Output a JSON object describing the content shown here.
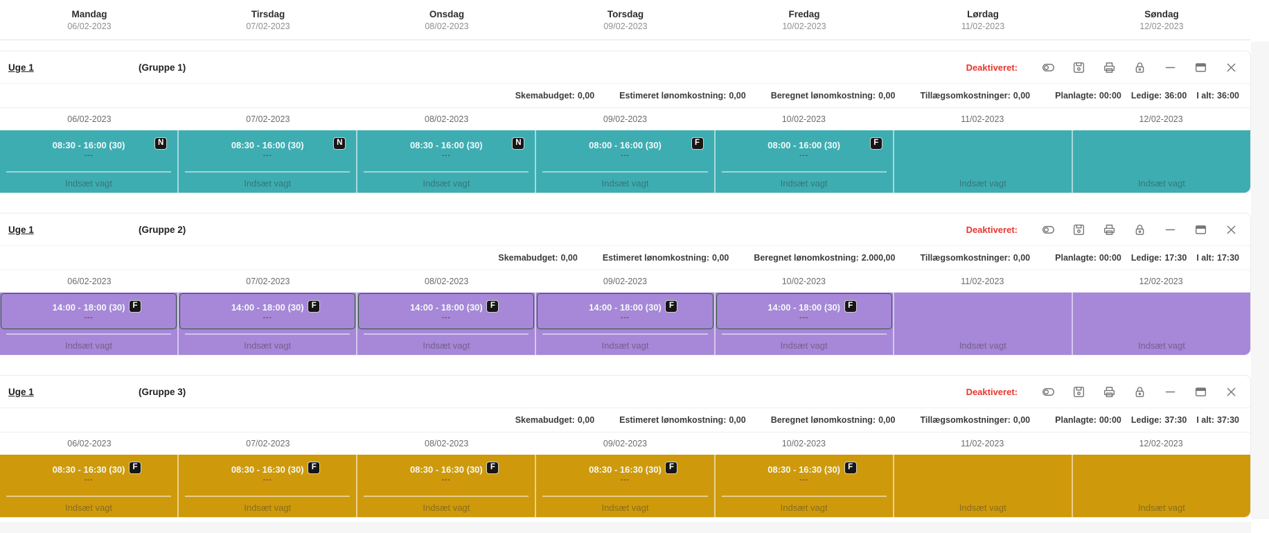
{
  "header": {
    "days": [
      {
        "name": "Mandag",
        "date": "06/02-2023"
      },
      {
        "name": "Tirsdag",
        "date": "07/02-2023"
      },
      {
        "name": "Onsdag",
        "date": "08/02-2023"
      },
      {
        "name": "Torsdag",
        "date": "09/02-2023"
      },
      {
        "name": "Fredag",
        "date": "10/02-2023"
      },
      {
        "name": "Lørdag",
        "date": "11/02-2023"
      },
      {
        "name": "Søndag",
        "date": "12/02-2023"
      }
    ]
  },
  "labels": {
    "deactivated": "Deaktiveret:",
    "insert_shift": "Indsæt vagt"
  },
  "icons": [
    "toggle-icon",
    "save-icon",
    "print-icon",
    "lock-icon",
    "minimize-icon",
    "window-icon",
    "close-icon"
  ],
  "colors": {
    "group1_row": "#3dadb2",
    "group2_row": "#a687d8",
    "group2_block_border": "#2e5c31",
    "group3_row": "#ce9a0b",
    "deactivated_text": "#e8352e",
    "dash_marks": "#9c372e",
    "badge_bg": "#161616"
  },
  "groups": [
    {
      "week_label": "Uge 1",
      "group_label": "(Gruppe 1)",
      "color": "#3dadb2",
      "block_border": null,
      "badge_align": "edge",
      "stats": [
        {
          "label": "Skemabudget:",
          "value": "0,00",
          "tight": false
        },
        {
          "label": "Estimeret lønomkostning:",
          "value": "0,00",
          "tight": false
        },
        {
          "label": "Beregnet lønomkostning:",
          "value": "0,00",
          "tight": false
        },
        {
          "label": "Tillægsomkostninger:",
          "value": "0,00",
          "tight": false
        },
        {
          "label": "Planlagte:",
          "value": "00:00",
          "tight": false
        },
        {
          "label": "Ledige:",
          "value": "36:00",
          "tight": true
        },
        {
          "label": "I alt:",
          "value": "36:00",
          "tight": true
        }
      ],
      "dates": [
        "06/02-2023",
        "07/02-2023",
        "08/02-2023",
        "09/02-2023",
        "10/02-2023",
        "11/02-2023",
        "12/02-2023"
      ],
      "shifts": [
        {
          "time": "08:30 - 16:00 (30)",
          "badge": "N",
          "dashes": "---"
        },
        {
          "time": "08:30 - 16:00 (30)",
          "badge": "N",
          "dashes": "---"
        },
        {
          "time": "08:30 - 16:00 (30)",
          "badge": "N",
          "dashes": "---"
        },
        {
          "time": "08:00 - 16:00 (30)",
          "badge": "F",
          "dashes": "---"
        },
        {
          "time": "08:00 - 16:00 (30)",
          "badge": "F",
          "dashes": "---"
        },
        null,
        null
      ]
    },
    {
      "week_label": "Uge 1",
      "group_label": "(Gruppe 2)",
      "color": "#a687d8",
      "block_border": "#2e5c31",
      "badge_align": "mid",
      "stats": [
        {
          "label": "Skemabudget:",
          "value": "0,00",
          "tight": false
        },
        {
          "label": "Estimeret lønomkostning:",
          "value": "0,00",
          "tight": false
        },
        {
          "label": "Beregnet lønomkostning:",
          "value": "2.000,00",
          "tight": false
        },
        {
          "label": "Tillægsomkostninger:",
          "value": "0,00",
          "tight": false
        },
        {
          "label": "Planlagte:",
          "value": "00:00",
          "tight": false
        },
        {
          "label": "Ledige:",
          "value": "17:30",
          "tight": true
        },
        {
          "label": "I alt:",
          "value": "17:30",
          "tight": true
        }
      ],
      "dates": [
        "06/02-2023",
        "07/02-2023",
        "08/02-2023",
        "09/02-2023",
        "10/02-2023",
        "11/02-2023",
        "12/02-2023"
      ],
      "shifts": [
        {
          "time": "14:00 - 18:00 (30)",
          "badge": "F",
          "dashes": "---"
        },
        {
          "time": "14:00 - 18:00 (30)",
          "badge": "F",
          "dashes": "---"
        },
        {
          "time": "14:00 - 18:00 (30)",
          "badge": "F",
          "dashes": "---"
        },
        {
          "time": "14:00 - 18:00 (30)",
          "badge": "F",
          "dashes": "---"
        },
        {
          "time": "14:00 - 18:00 (30)",
          "badge": "F",
          "dashes": "---"
        },
        null,
        null
      ]
    },
    {
      "week_label": "Uge 1",
      "group_label": "(Gruppe 3)",
      "color": "#ce9a0b",
      "block_border": null,
      "badge_align": "mid",
      "stats": [
        {
          "label": "Skemabudget:",
          "value": "0,00",
          "tight": false
        },
        {
          "label": "Estimeret lønomkostning:",
          "value": "0,00",
          "tight": false
        },
        {
          "label": "Beregnet lønomkostning:",
          "value": "0,00",
          "tight": false
        },
        {
          "label": "Tillægsomkostninger:",
          "value": "0,00",
          "tight": false
        },
        {
          "label": "Planlagte:",
          "value": "00:00",
          "tight": false
        },
        {
          "label": "Ledige:",
          "value": "37:30",
          "tight": true
        },
        {
          "label": "I alt:",
          "value": "37:30",
          "tight": true
        }
      ],
      "dates": [
        "06/02-2023",
        "07/02-2023",
        "08/02-2023",
        "09/02-2023",
        "10/02-2023",
        "11/02-2023",
        "12/02-2023"
      ],
      "shifts": [
        {
          "time": "08:30 - 16:30 (30)",
          "badge": "F",
          "dashes": "---"
        },
        {
          "time": "08:30 - 16:30 (30)",
          "badge": "F",
          "dashes": "---"
        },
        {
          "time": "08:30 - 16:30 (30)",
          "badge": "F",
          "dashes": "---"
        },
        {
          "time": "08:30 - 16:30 (30)",
          "badge": "F",
          "dashes": "---"
        },
        {
          "time": "08:30 - 16:30 (30)",
          "badge": "F",
          "dashes": "---"
        },
        null,
        null
      ]
    }
  ]
}
